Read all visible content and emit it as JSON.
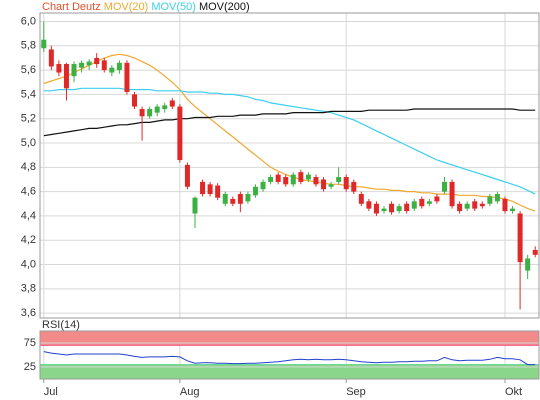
{
  "chart_data": {
    "type": "candlestick",
    "title": "Chart Deutz",
    "title_color": "#e0502a",
    "up_color": "#3cb043",
    "down_color": "#e02828",
    "categories": [
      "Jul",
      null,
      null,
      null,
      null,
      null,
      null,
      null,
      null,
      null,
      null,
      null,
      null,
      null,
      null,
      null,
      null,
      null,
      "Aug",
      null,
      null,
      null,
      null,
      null,
      null,
      null,
      null,
      null,
      null,
      null,
      null,
      null,
      null,
      null,
      null,
      null,
      null,
      null,
      null,
      null,
      "Sep",
      null,
      null,
      null,
      null,
      null,
      null,
      null,
      null,
      null,
      null,
      null,
      null,
      null,
      null,
      null,
      null,
      null,
      null,
      null,
      null,
      "Okt",
      null,
      null,
      null,
      null
    ],
    "ohlc": [
      [
        5.78,
        6.0,
        5.75,
        5.85
      ],
      [
        5.77,
        5.8,
        5.6,
        5.63
      ],
      [
        5.65,
        5.68,
        5.55,
        5.58
      ],
      [
        5.65,
        5.66,
        5.35,
        5.45
      ],
      [
        5.55,
        5.67,
        5.5,
        5.65
      ],
      [
        5.62,
        5.68,
        5.58,
        5.66
      ],
      [
        5.64,
        5.69,
        5.6,
        5.67
      ],
      [
        5.7,
        5.74,
        5.62,
        5.65
      ],
      [
        5.68,
        5.7,
        5.58,
        5.6
      ],
      [
        5.58,
        5.64,
        5.55,
        5.62
      ],
      [
        5.6,
        5.68,
        5.57,
        5.66
      ],
      [
        5.66,
        5.68,
        5.4,
        5.42
      ],
      [
        5.4,
        5.42,
        5.28,
        5.3
      ],
      [
        5.28,
        5.3,
        5.02,
        5.22
      ],
      [
        5.22,
        5.3,
        5.2,
        5.28
      ],
      [
        5.25,
        5.32,
        5.22,
        5.3
      ],
      [
        5.28,
        5.33,
        5.25,
        5.31
      ],
      [
        5.35,
        5.37,
        5.28,
        5.3
      ],
      [
        5.3,
        5.32,
        4.84,
        4.86
      ],
      [
        4.82,
        4.84,
        4.62,
        4.64
      ],
      [
        4.42,
        4.56,
        4.3,
        4.55
      ],
      [
        4.68,
        4.7,
        4.56,
        4.58
      ],
      [
        4.66,
        4.68,
        4.56,
        4.58
      ],
      [
        4.65,
        4.67,
        4.53,
        4.55
      ],
      [
        4.5,
        4.6,
        4.48,
        4.58
      ],
      [
        4.54,
        4.56,
        4.48,
        4.5
      ],
      [
        4.58,
        4.6,
        4.43,
        4.5
      ],
      [
        4.52,
        4.6,
        4.5,
        4.58
      ],
      [
        4.57,
        4.66,
        4.55,
        4.64
      ],
      [
        4.62,
        4.7,
        4.6,
        4.68
      ],
      [
        4.68,
        4.74,
        4.66,
        4.72
      ],
      [
        4.74,
        4.76,
        4.66,
        4.68
      ],
      [
        4.72,
        4.74,
        4.64,
        4.66
      ],
      [
        4.66,
        4.76,
        4.64,
        4.74
      ],
      [
        4.76,
        4.78,
        4.66,
        4.68
      ],
      [
        4.7,
        4.76,
        4.68,
        4.74
      ],
      [
        4.72,
        4.74,
        4.64,
        4.66
      ],
      [
        4.7,
        4.72,
        4.6,
        4.62
      ],
      [
        4.64,
        4.68,
        4.62,
        4.66
      ],
      [
        4.68,
        4.8,
        4.66,
        4.72
      ],
      [
        4.72,
        4.74,
        4.6,
        4.62
      ],
      [
        4.68,
        4.7,
        4.58,
        4.6
      ],
      [
        4.58,
        4.6,
        4.48,
        4.5
      ],
      [
        4.52,
        4.54,
        4.44,
        4.46
      ],
      [
        4.5,
        4.52,
        4.4,
        4.42
      ],
      [
        4.44,
        4.48,
        4.42,
        4.46
      ],
      [
        4.5,
        4.52,
        4.41,
        4.43
      ],
      [
        4.44,
        4.5,
        4.42,
        4.48
      ],
      [
        4.5,
        4.52,
        4.42,
        4.44
      ],
      [
        4.46,
        4.54,
        4.44,
        4.52
      ],
      [
        4.54,
        4.56,
        4.46,
        4.48
      ],
      [
        4.5,
        4.54,
        4.48,
        4.52
      ],
      [
        4.56,
        4.58,
        4.5,
        4.52
      ],
      [
        4.6,
        4.72,
        4.58,
        4.68
      ],
      [
        4.68,
        4.7,
        4.46,
        4.48
      ],
      [
        4.5,
        4.52,
        4.42,
        4.44
      ],
      [
        4.46,
        4.52,
        4.44,
        4.5
      ],
      [
        4.52,
        4.54,
        4.44,
        4.46
      ],
      [
        4.5,
        4.52,
        4.46,
        4.48
      ],
      [
        4.5,
        4.58,
        4.48,
        4.56
      ],
      [
        4.52,
        4.6,
        4.5,
        4.58
      ],
      [
        4.54,
        4.56,
        4.42,
        4.44
      ],
      [
        4.44,
        4.48,
        4.42,
        4.46
      ],
      [
        4.42,
        4.44,
        3.63,
        4.02
      ],
      [
        3.95,
        4.08,
        3.88,
        4.05
      ],
      [
        4.12,
        4.15,
        4.06,
        4.08
      ]
    ],
    "series": [
      {
        "name": "MOV(20)",
        "color": "#f0a830",
        "values": [
          5.49,
          5.51,
          5.53,
          5.55,
          5.58,
          5.61,
          5.64,
          5.67,
          5.7,
          5.72,
          5.73,
          5.72,
          5.7,
          5.67,
          5.64,
          5.6,
          5.55,
          5.5,
          5.44,
          5.36,
          5.3,
          5.25,
          5.2,
          5.15,
          5.1,
          5.05,
          5.0,
          4.95,
          4.9,
          4.85,
          4.8,
          4.77,
          4.74,
          4.72,
          4.7,
          4.69,
          4.68,
          4.67,
          4.66,
          4.66,
          4.65,
          4.64,
          4.64,
          4.63,
          4.62,
          4.62,
          4.61,
          4.61,
          4.6,
          4.6,
          4.59,
          4.59,
          4.58,
          4.58,
          4.58,
          4.57,
          4.57,
          4.57,
          4.56,
          4.56,
          4.55,
          4.54,
          4.52,
          4.49,
          4.46,
          4.44
        ]
      },
      {
        "name": "MOV(50)",
        "color": "#3ccfee",
        "values": [
          5.43,
          5.43,
          5.44,
          5.44,
          5.44,
          5.45,
          5.45,
          5.45,
          5.45,
          5.45,
          5.45,
          5.44,
          5.44,
          5.44,
          5.44,
          5.43,
          5.43,
          5.43,
          5.43,
          5.42,
          5.42,
          5.42,
          5.41,
          5.41,
          5.4,
          5.4,
          5.39,
          5.38,
          5.36,
          5.35,
          5.33,
          5.32,
          5.31,
          5.3,
          5.29,
          5.28,
          5.27,
          5.26,
          5.25,
          5.23,
          5.21,
          5.19,
          5.16,
          5.13,
          5.1,
          5.07,
          5.04,
          5.01,
          4.98,
          4.95,
          4.92,
          4.89,
          4.86,
          4.84,
          4.82,
          4.8,
          4.78,
          4.76,
          4.74,
          4.72,
          4.7,
          4.68,
          4.66,
          4.64,
          4.61,
          4.58
        ]
      },
      {
        "name": "MOV(200)",
        "color": "#111111",
        "values": [
          5.06,
          5.07,
          5.08,
          5.09,
          5.1,
          5.11,
          5.12,
          5.12,
          5.13,
          5.14,
          5.15,
          5.15,
          5.16,
          5.17,
          5.17,
          5.18,
          5.19,
          5.19,
          5.2,
          5.2,
          5.21,
          5.21,
          5.21,
          5.22,
          5.22,
          5.22,
          5.23,
          5.23,
          5.23,
          5.24,
          5.24,
          5.24,
          5.24,
          5.25,
          5.25,
          5.25,
          5.25,
          5.25,
          5.26,
          5.26,
          5.26,
          5.26,
          5.26,
          5.27,
          5.27,
          5.27,
          5.27,
          5.27,
          5.27,
          5.28,
          5.28,
          5.28,
          5.28,
          5.28,
          5.28,
          5.28,
          5.28,
          5.28,
          5.28,
          5.28,
          5.28,
          5.28,
          5.28,
          5.27,
          5.27,
          5.27
        ]
      }
    ],
    "ylim": [
      3.56,
      6.07
    ],
    "yticks": [
      {
        "value": 6.0,
        "label": "6,0"
      },
      {
        "value": 5.8,
        "label": "5,8"
      },
      {
        "value": 5.6,
        "label": "5,6"
      },
      {
        "value": 5.4,
        "label": "5,4"
      },
      {
        "value": 5.2,
        "label": "5,2"
      },
      {
        "value": 5.0,
        "label": "5,0"
      },
      {
        "value": 4.8,
        "label": "4,8"
      },
      {
        "value": 4.6,
        "label": "4,6"
      },
      {
        "value": 4.4,
        "label": "4,4"
      },
      {
        "value": 4.2,
        "label": "4,2"
      },
      {
        "value": 4.0,
        "label": "4,0"
      },
      {
        "value": 3.8,
        "label": "3,8"
      },
      {
        "value": 3.6,
        "label": "3,6"
      }
    ],
    "grid": true,
    "rsi": {
      "type": "line",
      "name": "RSI(14)",
      "color": "#2040d0",
      "values": [
        57,
        54,
        52,
        50,
        52,
        52,
        52,
        52,
        52,
        52,
        52,
        50,
        47,
        45,
        46,
        46,
        46,
        47,
        46,
        38,
        33,
        34,
        34,
        33,
        33,
        32,
        32,
        33,
        33,
        34,
        35,
        36,
        38,
        40,
        41,
        40,
        41,
        40,
        40,
        41,
        40,
        38,
        36,
        35,
        34,
        35,
        35,
        36,
        36,
        37,
        37,
        38,
        38,
        45,
        40,
        38,
        39,
        39,
        39,
        41,
        45,
        42,
        42,
        40,
        30,
        30
      ],
      "ylim": [
        0,
        100
      ],
      "yticks": [
        75,
        25
      ],
      "bands": [
        {
          "range": [
            70,
            100
          ],
          "color": "#f28a8a"
        },
        {
          "range": [
            0,
            30
          ],
          "color": "#8ad68a"
        }
      ]
    }
  }
}
